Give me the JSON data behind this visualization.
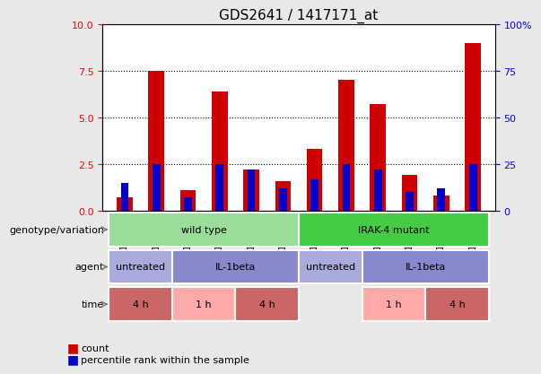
{
  "title": "GDS2641 / 1417171_at",
  "samples": [
    "GSM155304",
    "GSM156795",
    "GSM156796",
    "GSM156797",
    "GSM156798",
    "GSM156799",
    "GSM156800",
    "GSM156801",
    "GSM156802",
    "GSM156803",
    "GSM156804",
    "GSM156805"
  ],
  "count_values": [
    0.7,
    7.5,
    1.1,
    6.4,
    2.2,
    1.6,
    3.3,
    7.0,
    5.7,
    1.9,
    0.8,
    9.0
  ],
  "percentile_values": [
    0.15,
    0.25,
    0.07,
    0.25,
    0.22,
    0.12,
    0.17,
    0.25,
    0.22,
    0.1,
    0.12,
    0.25
  ],
  "ylim_left": [
    0,
    10
  ],
  "ylim_right": [
    0,
    100
  ],
  "yticks_left": [
    0,
    2.5,
    5.0,
    7.5,
    10
  ],
  "yticks_right": [
    0,
    25,
    50,
    75,
    100
  ],
  "ytick_labels_right": [
    "0",
    "25",
    "50",
    "75",
    "100%"
  ],
  "bar_color_red": "#cc0000",
  "bar_color_blue": "#0000cc",
  "background_color": "#f0f0f0",
  "plot_bg_color": "#ffffff",
  "grid_color": "#000000",
  "genotype_row": {
    "label": "genotype/variation",
    "groups": [
      {
        "text": "wild type",
        "start": 0,
        "end": 6,
        "color": "#99dd99"
      },
      {
        "text": "IRAK-4 mutant",
        "start": 6,
        "end": 12,
        "color": "#44cc44"
      }
    ]
  },
  "agent_row": {
    "label": "agent",
    "groups": [
      {
        "text": "untreated",
        "start": 0,
        "end": 2,
        "color": "#aaaadd"
      },
      {
        "text": "IL-1beta",
        "start": 2,
        "end": 6,
        "color": "#8888cc"
      },
      {
        "text": "untreated",
        "start": 6,
        "end": 8,
        "color": "#aaaadd"
      },
      {
        "text": "IL-1beta",
        "start": 8,
        "end": 12,
        "color": "#8888cc"
      }
    ]
  },
  "time_row": {
    "label": "time",
    "groups": [
      {
        "text": "4 h",
        "start": 0,
        "end": 2,
        "color": "#cc6666"
      },
      {
        "text": "1 h",
        "start": 2,
        "end": 4,
        "color": "#ffaaaa"
      },
      {
        "text": "4 h",
        "start": 4,
        "end": 6,
        "color": "#cc6666"
      },
      {
        "text": "1 h",
        "start": 8,
        "end": 10,
        "color": "#ffaaaa"
      },
      {
        "text": "4 h",
        "start": 10,
        "end": 12,
        "color": "#cc6666"
      }
    ]
  },
  "legend_count_color": "#cc0000",
  "legend_percentile_color": "#0000cc",
  "label_fontsize": 9,
  "tick_fontsize": 8
}
